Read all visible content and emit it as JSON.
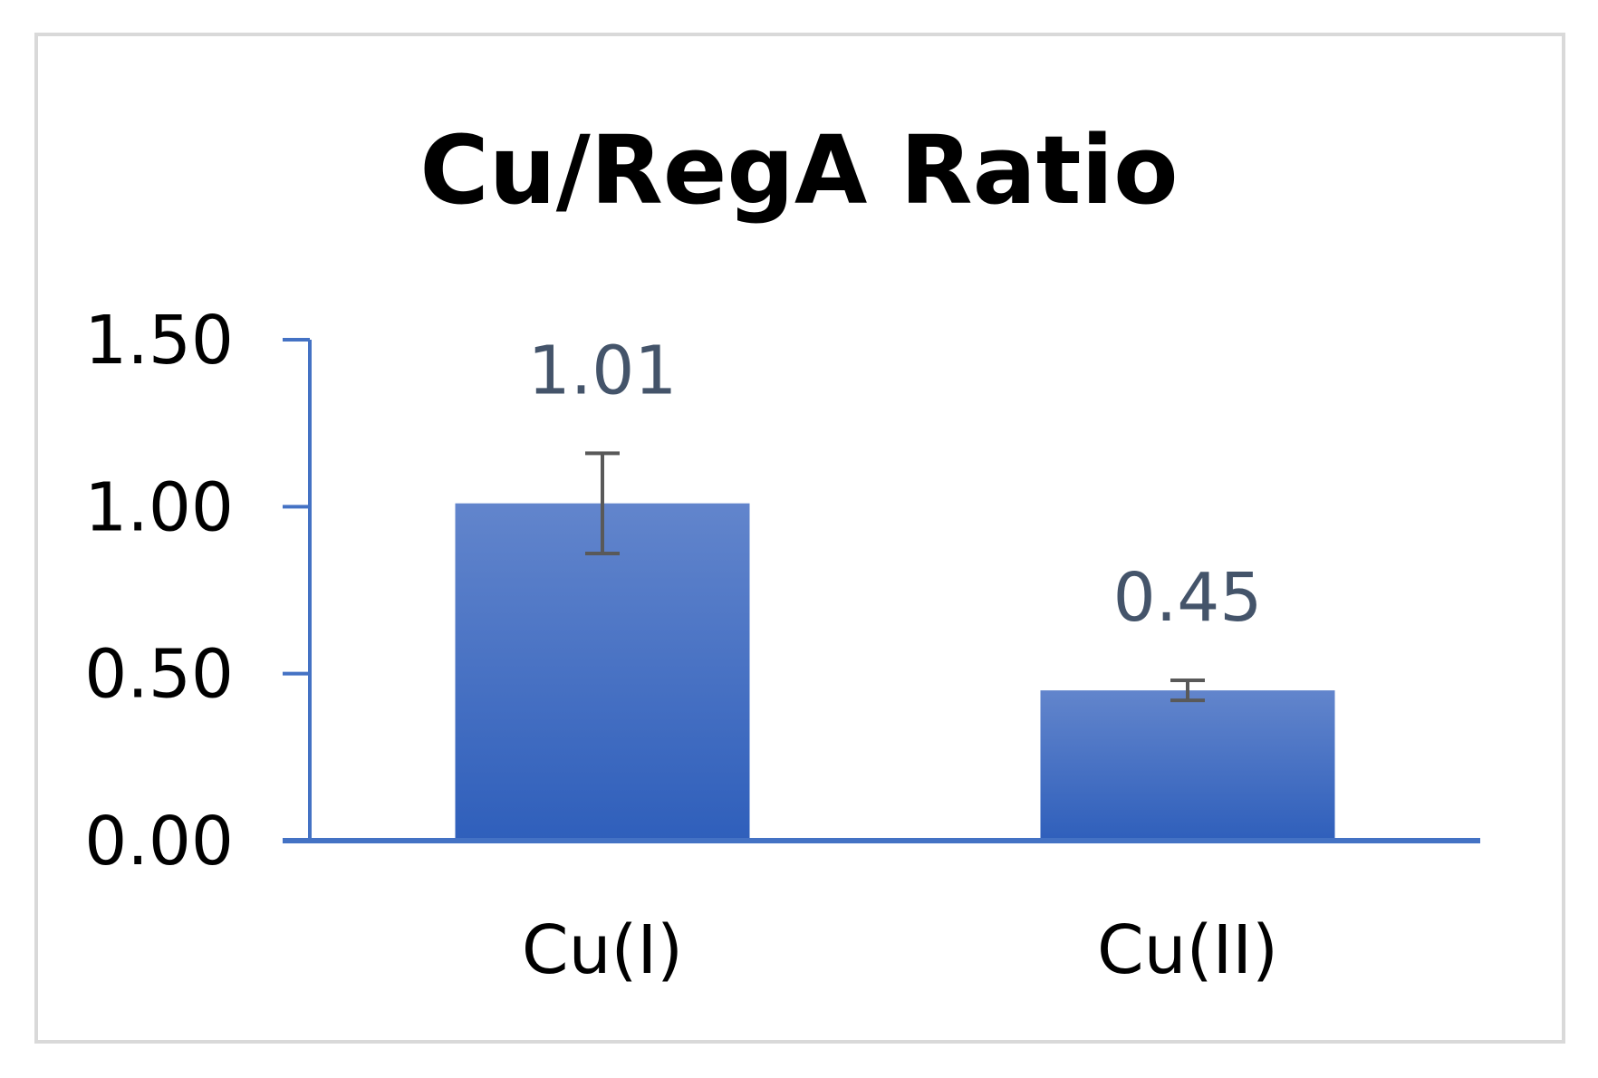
{
  "chart_data": {
    "type": "bar",
    "title": "Cu/RegA Ratio",
    "xlabel": "",
    "ylabel": "",
    "categories": [
      "Cu(I)",
      "Cu(II)"
    ],
    "values": [
      1.01,
      0.45
    ],
    "data_labels": [
      "1.01",
      "0.45"
    ],
    "error_bars": [
      {
        "low": 0.86,
        "high": 1.16
      },
      {
        "low": 0.42,
        "high": 0.48
      }
    ],
    "ylim": [
      0,
      1.5
    ],
    "yticks": [
      0,
      0.5,
      1.0,
      1.5
    ],
    "ytick_labels": [
      "0.00",
      "0.50",
      "1.00",
      "1.50"
    ],
    "grid": false,
    "legend": "none",
    "colors": {
      "bar_top": "#6285cc",
      "bar_bottom": "#2f5fbb",
      "axis": "#4472c4",
      "error_bar": "#595959",
      "data_label": "#44546a"
    }
  }
}
